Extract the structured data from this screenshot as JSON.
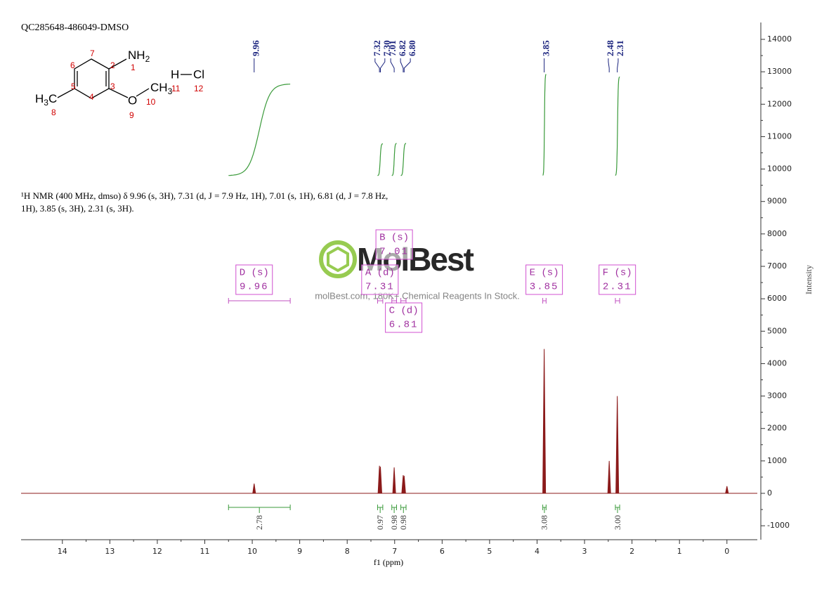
{
  "chart_data": {
    "type": "nmr",
    "title": "QC285648-486049-DMSO",
    "xlabel": "f1 (ppm)",
    "ylabel": "Intensity",
    "xlim": [
      14.87,
      -0.64
    ],
    "xticks": [
      14,
      13,
      12,
      11,
      10,
      9,
      8,
      7,
      6,
      5,
      4,
      3,
      2,
      1,
      0
    ],
    "ylim": [
      -1430,
      14520
    ],
    "yticks": [
      -1000,
      0,
      1000,
      2000,
      3000,
      4000,
      5000,
      6000,
      7000,
      8000,
      9000,
      10000,
      11000,
      12000,
      13000,
      14000
    ],
    "color": "#8b1a1a",
    "peaks": {
      "x": [
        9.96,
        7.32,
        {
          "value": 7.3,
          "label": "7.30"
        },
        7.01,
        6.82,
        {
          "value": 6.8,
          "label": "6.80"
        },
        3.85,
        2.48,
        2.31
      ],
      "values": [
        300,
        850,
        820,
        800,
        560,
        540,
        4450,
        1000,
        3000
      ]
    },
    "unlabeled_peaks": {
      "x": [
        0
      ],
      "values": [
        220
      ]
    },
    "integrals": [
      {
        "from": 10.5,
        "to": 9.2,
        "value": 2.78
      },
      {
        "from": 7.36,
        "to": 7.25,
        "value": 0.97
      },
      {
        "from": 7.06,
        "to": 6.96,
        "value": 0.98
      },
      {
        "from": 6.87,
        "to": 6.76,
        "value": 0.98
      },
      {
        "from": 3.88,
        "to": 3.81,
        "value": 3.08
      },
      {
        "from": 2.35,
        "to": 2.26,
        "value": {
          "value": 3,
          "label": "3.00"
        }
      }
    ],
    "multiplets": [
      {
        "label": "D (s)",
        "shift": 9.96,
        "from": 10.5,
        "to": 9.2
      },
      {
        "label": "A (d)",
        "shift": 7.31,
        "from": 7.36,
        "to": 7.25
      },
      {
        "label": "B (s)",
        "shift": 7.01,
        "from": 7.06,
        "to": 6.96
      },
      {
        "label": "C (d)",
        "shift": 6.81,
        "from": 6.87,
        "to": 6.76
      },
      {
        "label": "E (s)",
        "shift": 3.85,
        "from": 3.88,
        "to": 3.81
      },
      {
        "label": "F (s)",
        "shift": 2.31,
        "from": 2.35,
        "to": 2.26
      }
    ],
    "description": "¹H NMR (400 MHz, dmso) δ 9.96 (s, 3H), 7.31 (d, J = 7.9 Hz, 1H), 7.01 (s, 1H), 6.81 (d, J = 7.8 Hz, 1H), 3.85 (s, 3H), 2.31 (s, 3H)."
  },
  "molecule": {
    "atoms": [
      {
        "text": "NH",
        "sub": "2"
      },
      {
        "text": "H",
        "sub": "3",
        "after": "C"
      },
      {
        "text": "O"
      },
      {
        "text": "CH",
        "sub": "3"
      },
      {
        "text": "H"
      },
      {
        "text": "Cl"
      }
    ],
    "numbers": [
      7,
      1,
      2,
      6,
      5,
      3,
      4,
      8,
      9,
      10,
      11,
      12
    ]
  },
  "watermark": {
    "brand": "MolBest",
    "tagline": "molBest.com, 180K+ Chemical Reagents In Stock."
  }
}
